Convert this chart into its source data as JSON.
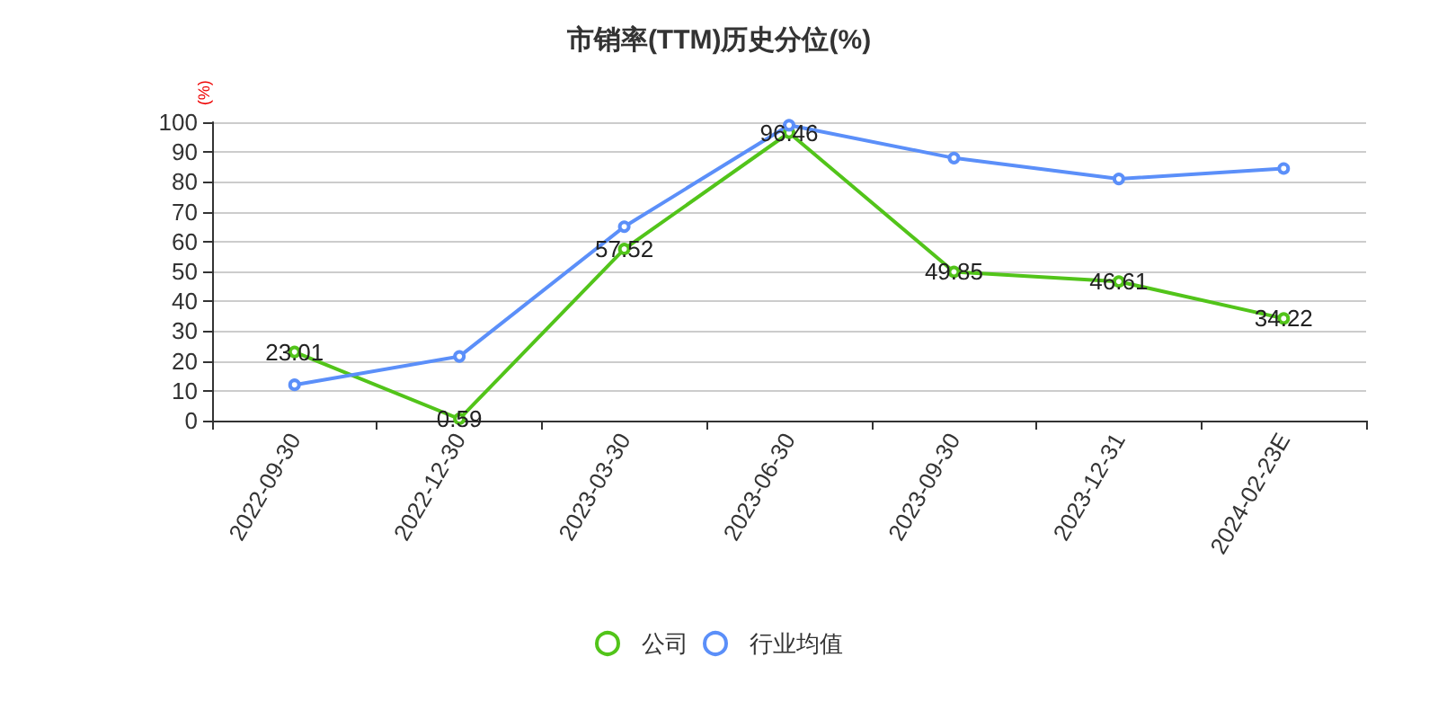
{
  "chart_data": {
    "type": "line",
    "title": "市销率(TTM)历史分位(%)",
    "ylabel": "(%)",
    "categories": [
      "2022-09-30",
      "2022-12-30",
      "2023-03-30",
      "2023-06-30",
      "2023-09-30",
      "2023-12-31",
      "2024-02-23E"
    ],
    "series": [
      {
        "name": "公司",
        "color": "#52c41a",
        "values": [
          23.01,
          0.59,
          57.52,
          96.46,
          49.85,
          46.61,
          34.22
        ],
        "value_labels": [
          "23.01",
          "0.59",
          "57.52",
          "96.46",
          "49.85",
          "46.61",
          "34.22"
        ]
      },
      {
        "name": "行业均值",
        "color": "#5b8ff9",
        "values": [
          12,
          21.5,
          65,
          99,
          88,
          81,
          84.5
        ]
      }
    ],
    "ylim": [
      0,
      100
    ],
    "yticks": [
      0,
      10,
      20,
      30,
      40,
      50,
      60,
      70,
      80,
      90,
      100
    ],
    "grid": "y",
    "legend": "bottom",
    "marker": "circle"
  }
}
